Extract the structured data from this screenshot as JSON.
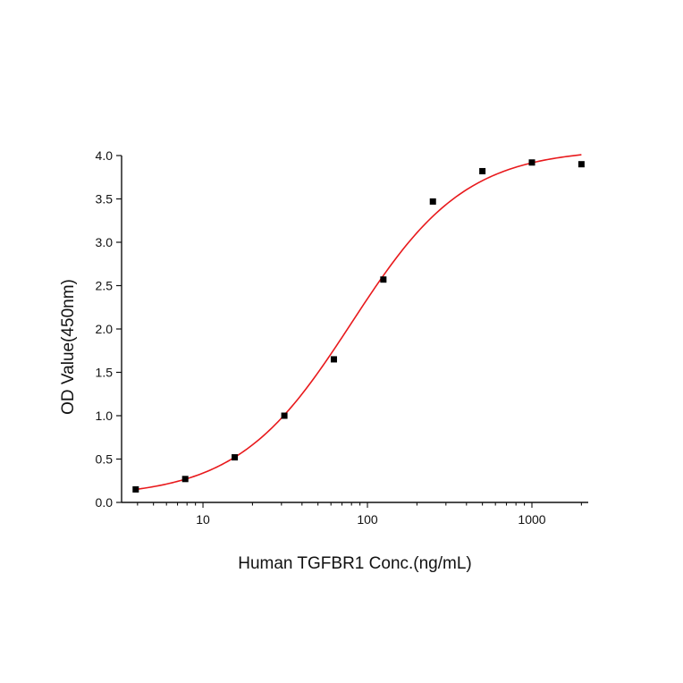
{
  "chart_data": {
    "type": "scatter",
    "xlabel": "Human TGFBR1 Conc.(ng/mL)",
    "ylabel": "OD Value(450nm)",
    "xscale": "log",
    "xlim": [
      3.2,
      2200
    ],
    "ylim": [
      0,
      4.0
    ],
    "xticks": [
      10,
      100,
      1000
    ],
    "xtick_labels": [
      "10",
      "100",
      "1000"
    ],
    "yticks": [
      0,
      0.5,
      1.0,
      1.5,
      2.0,
      2.5,
      3.0,
      3.5,
      4.0
    ],
    "ytick_labels": [
      "0.0",
      "0.5",
      "1.0",
      "1.5",
      "2.0",
      "2.5",
      "3.0",
      "3.5",
      "4.0"
    ],
    "grid": false,
    "legend": "none",
    "series": [
      {
        "marker": "square",
        "color": "#000000",
        "x": [
          3.9,
          7.8,
          15.6,
          31.25,
          62.5,
          125,
          250,
          500,
          1000,
          2000
        ],
        "y": [
          0.15,
          0.27,
          0.52,
          1.0,
          1.65,
          2.57,
          3.47,
          3.82,
          3.92,
          3.9
        ]
      },
      {
        "kind": "fit",
        "model": "4PL",
        "color": "#e8191c",
        "params": {
          "bottom": 0.06,
          "top": 4.08,
          "ec50": 80,
          "hill": 1.25
        },
        "x_range": [
          3.9,
          2000
        ]
      }
    ]
  }
}
